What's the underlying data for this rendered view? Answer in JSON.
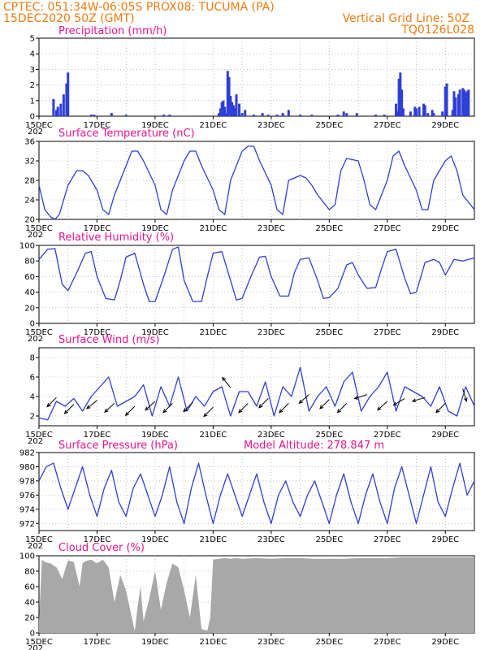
{
  "header": {
    "line1_left": "CPTEC:   051:34W-06:05S   PROX08: TUCUMA (PA)",
    "line2_left": "15DEC2020 50Z (GMT)",
    "line2_right": "Vertical Grid Line: 50Z",
    "line3_right": "TQ0126L028"
  },
  "colors": {
    "header": "#f07a12",
    "title": "#e8138f",
    "series": "#2e3fd6",
    "cloud": "#a8a8a8"
  },
  "x_axis": {
    "labels": [
      "15DEC",
      "17DEC",
      "19DEC",
      "21DEC",
      "23DEC",
      "25DEC",
      "27DEC",
      "29DEC"
    ],
    "year_stub": "202"
  },
  "chart_data": [
    {
      "type": "bar",
      "title": "Precipitation (mm/h)",
      "ylim": [
        0,
        5
      ],
      "yticks": [
        0,
        1,
        2,
        3,
        4,
        5
      ],
      "x": [
        0.5,
        0.6,
        0.65,
        0.75,
        0.85,
        0.95,
        1.0,
        1.8,
        1.9,
        2.5,
        3.0,
        4.3,
        4.5,
        6.2,
        6.25,
        6.3,
        6.35,
        6.4,
        6.45,
        6.5,
        6.55,
        6.6,
        6.65,
        6.7,
        6.75,
        6.8,
        6.9,
        7.0,
        7.1,
        7.4,
        7.7,
        7.9,
        8.2,
        8.4,
        8.6,
        9.0,
        9.4,
        10.3,
        10.5,
        10.6,
        10.95,
        11.6,
        11.9,
        12.3,
        12.35,
        12.4,
        12.45,
        12.5,
        12.55,
        12.8,
        12.95,
        13.0,
        13.1,
        13.25,
        13.3,
        13.4,
        13.55,
        13.6,
        13.9,
        14.0,
        14.05,
        14.25,
        14.3,
        14.35,
        14.45,
        14.5,
        14.6,
        14.65,
        14.7,
        14.75,
        14.8
      ],
      "values": [
        1.1,
        0.4,
        0.6,
        0.8,
        1.4,
        2.1,
        2.8,
        0.1,
        0.1,
        0.2,
        0.1,
        0.1,
        0.1,
        0.2,
        0.5,
        0.9,
        1.0,
        0.6,
        0.2,
        2.9,
        2.5,
        1.3,
        0.9,
        0.7,
        0.5,
        1.4,
        0.8,
        0.2,
        0.4,
        0.1,
        0.2,
        0.1,
        0.1,
        0.2,
        0.4,
        0.1,
        0.1,
        0.1,
        0.3,
        0.2,
        0.2,
        0.1,
        0.1,
        0.8,
        0.3,
        2.4,
        2.8,
        1.7,
        0.5,
        0.3,
        0.6,
        0.5,
        0.6,
        0.8,
        0.7,
        0.2,
        0.4,
        0.2,
        0.3,
        1.9,
        2.1,
        0.4,
        1.6,
        1.2,
        1.4,
        1.7,
        1.8,
        1.7,
        1.5,
        1.6,
        1.7
      ]
    },
    {
      "type": "line",
      "title": "Surface Temperature (nC)",
      "ylim": [
        20,
        36
      ],
      "yticks": [
        20,
        24,
        28,
        32,
        36
      ],
      "x": [
        0,
        0.2,
        0.4,
        0.55,
        0.7,
        1.0,
        1.3,
        1.5,
        1.7,
        2.0,
        2.2,
        2.4,
        2.6,
        3.0,
        3.2,
        3.4,
        3.6,
        4.0,
        4.2,
        4.4,
        4.6,
        5.0,
        5.2,
        5.4,
        5.6,
        6.0,
        6.2,
        6.4,
        6.6,
        7.0,
        7.2,
        7.4,
        7.6,
        8.0,
        8.2,
        8.4,
        8.6,
        9.0,
        9.2,
        9.4,
        9.6,
        10.0,
        10.2,
        10.4,
        10.6,
        11.0,
        11.2,
        11.4,
        11.6,
        12.0,
        12.2,
        12.4,
        12.6,
        13.0,
        13.2,
        13.4,
        13.6,
        14.0,
        14.2,
        14.4,
        14.6,
        15.0
      ],
      "values": [
        27,
        22,
        20.5,
        20,
        21,
        27,
        30,
        30,
        29,
        26,
        22,
        21,
        25,
        31,
        34,
        34,
        32,
        27,
        22,
        21,
        26,
        32,
        34,
        34,
        31,
        26,
        22,
        21,
        28,
        34,
        35,
        35,
        32,
        27,
        22,
        21,
        28,
        29,
        28.5,
        27,
        25,
        22,
        23,
        30,
        32.5,
        32,
        28,
        23,
        22,
        28,
        33,
        34,
        31,
        26,
        22,
        22,
        28,
        32,
        33,
        30,
        25,
        22
      ]
    },
    {
      "type": "line",
      "title": "Relative Humidity (%)",
      "ylim": [
        0,
        100
      ],
      "yticks": [
        0,
        20,
        40,
        60,
        80,
        100
      ],
      "x": [
        0,
        0.3,
        0.55,
        0.8,
        1.0,
        1.3,
        1.6,
        1.8,
        2.0,
        2.3,
        2.6,
        2.8,
        3.0,
        3.3,
        3.6,
        3.8,
        4.0,
        4.3,
        4.6,
        4.8,
        5.0,
        5.3,
        5.6,
        5.8,
        6.0,
        6.3,
        6.6,
        6.8,
        7.0,
        7.3,
        7.6,
        7.8,
        8.0,
        8.3,
        8.6,
        8.8,
        9.0,
        9.3,
        9.6,
        9.8,
        10.0,
        10.3,
        10.6,
        10.8,
        11.0,
        11.3,
        11.6,
        11.8,
        12.0,
        12.3,
        12.6,
        12.8,
        13.0,
        13.3,
        13.6,
        13.8,
        14.0,
        14.3,
        14.6,
        15.0
      ],
      "values": [
        82,
        95,
        96,
        50,
        42,
        65,
        90,
        92,
        60,
        32,
        30,
        55,
        85,
        90,
        50,
        28,
        28,
        60,
        95,
        98,
        55,
        28,
        28,
        60,
        90,
        92,
        55,
        30,
        32,
        60,
        85,
        86,
        60,
        35,
        35,
        65,
        82,
        84,
        55,
        32,
        33,
        45,
        75,
        78,
        62,
        45,
        46,
        70,
        92,
        95,
        58,
        38,
        40,
        78,
        82,
        78,
        62,
        82,
        80,
        84
      ]
    },
    {
      "type": "line",
      "title": "Surface Wind (m/s)",
      "ylim": [
        1,
        9
      ],
      "yticks": [
        2,
        4,
        6,
        8
      ],
      "x": [
        0,
        0.3,
        0.6,
        0.9,
        1.2,
        1.5,
        1.8,
        2.1,
        2.4,
        2.7,
        3.0,
        3.3,
        3.6,
        3.9,
        4.2,
        4.5,
        4.8,
        5.1,
        5.4,
        5.7,
        6.0,
        6.3,
        6.6,
        6.9,
        7.2,
        7.5,
        7.8,
        8.1,
        8.4,
        8.7,
        9.0,
        9.3,
        9.6,
        9.9,
        10.2,
        10.5,
        10.8,
        11.1,
        11.4,
        11.7,
        12.0,
        12.3,
        12.6,
        12.9,
        13.2,
        13.5,
        13.8,
        14.1,
        14.4,
        14.7,
        15.0
      ],
      "values": [
        1.8,
        1.6,
        3.5,
        3.0,
        3.8,
        2.5,
        4.0,
        5.0,
        6.0,
        3.0,
        3.5,
        4.0,
        5.2,
        2.0,
        5.0,
        3.0,
        6.0,
        2.5,
        4.0,
        3.0,
        4.5,
        5.0,
        2.0,
        4.5,
        4.5,
        3.0,
        5.5,
        2.0,
        5.0,
        4.0,
        7.0,
        2.5,
        4.0,
        5.0,
        3.0,
        5.5,
        6.5,
        2.5,
        4.0,
        5.0,
        6.5,
        2.5,
        5.0,
        4.5,
        4.0,
        3.0,
        5.0,
        2.5,
        2.0,
        5.0,
        3.0
      ]
    },
    {
      "type": "line",
      "title": "Surface Pressure (hPa)",
      "annotation": "Model Altitude: 278.847  m",
      "ylim": [
        971,
        982
      ],
      "yticks": [
        972,
        974,
        976,
        978,
        980,
        982
      ],
      "x": [
        0,
        0.25,
        0.5,
        0.75,
        1.0,
        1.25,
        1.5,
        1.75,
        2.0,
        2.25,
        2.5,
        2.75,
        3.0,
        3.25,
        3.5,
        3.75,
        4.0,
        4.25,
        4.5,
        4.75,
        5.0,
        5.25,
        5.5,
        5.75,
        6.0,
        6.25,
        6.5,
        6.75,
        7.0,
        7.25,
        7.5,
        7.75,
        8.0,
        8.25,
        8.5,
        8.75,
        9.0,
        9.25,
        9.5,
        9.75,
        10.0,
        10.25,
        10.5,
        10.75,
        11.0,
        11.25,
        11.5,
        11.75,
        12.0,
        12.25,
        12.5,
        12.75,
        13.0,
        13.25,
        13.5,
        13.75,
        14.0,
        14.25,
        14.5,
        14.75,
        15.0
      ],
      "values": [
        978,
        980,
        980.5,
        977,
        974,
        977,
        980,
        976,
        973,
        977,
        979.5,
        975,
        973,
        977,
        979,
        976,
        973,
        976,
        980,
        975,
        972,
        977,
        980.5,
        976,
        972,
        976,
        979,
        976,
        973,
        976,
        979,
        975,
        972,
        976,
        978,
        975,
        973,
        976,
        978,
        975,
        972,
        976,
        979,
        975,
        972,
        976,
        979,
        975,
        972,
        977,
        980,
        976,
        972,
        976,
        980,
        975,
        973,
        977,
        980.5,
        976,
        978
      ]
    },
    {
      "type": "area",
      "title": "Cloud Cover (%)",
      "ylim": [
        0,
        100
      ],
      "yticks": [
        0,
        20,
        40,
        60,
        80,
        100
      ],
      "x": [
        0,
        0.1,
        0.2,
        0.4,
        0.6,
        0.8,
        1.0,
        1.2,
        1.4,
        1.5,
        1.6,
        1.8,
        2.0,
        2.2,
        2.4,
        2.6,
        2.8,
        3.0,
        3.2,
        3.3,
        3.4,
        3.5,
        3.6,
        3.8,
        4.0,
        4.2,
        4.4,
        4.6,
        4.8,
        5.0,
        5.2,
        5.4,
        5.6,
        5.8,
        5.9,
        6.0,
        6.2,
        6.4,
        6.6,
        6.8,
        7.0,
        7.5,
        8.0,
        8.5,
        9.0,
        9.5,
        10.0,
        10.5,
        11.0,
        11.5,
        12.0,
        12.5,
        13.0,
        13.5,
        14.0,
        14.5,
        15.0
      ],
      "values": [
        15,
        95,
        92,
        90,
        85,
        70,
        94,
        92,
        60,
        90,
        93,
        95,
        90,
        95,
        85,
        40,
        75,
        55,
        20,
        2,
        35,
        60,
        15,
        45,
        80,
        30,
        65,
        90,
        85,
        55,
        20,
        75,
        5,
        3,
        20,
        95,
        96,
        97,
        96,
        97,
        96,
        97,
        96,
        97,
        97,
        96,
        96,
        96,
        97,
        97,
        97,
        98,
        98,
        98,
        98,
        98,
        98
      ]
    }
  ],
  "wind_arrows": {
    "x": [
      0.6,
      1.2,
      2.0,
      2.6,
      3.3,
      4.0,
      4.6,
      5.3,
      6.0,
      6.6,
      7.2,
      7.9,
      8.6,
      9.3,
      10.0,
      10.6,
      11.3,
      12.0,
      12.6,
      13.3,
      14.0,
      14.6
    ],
    "y": [
      3.9,
      3.2,
      3.6,
      3.3,
      3.0,
      3.5,
      3.3,
      3.4,
      2.9,
      4.9,
      3.3,
      3.8,
      3.3,
      4.2,
      3.7,
      3.3,
      4.2,
      3.5,
      3.8,
      3.9,
      3.3,
      4.8
    ],
    "dx": [
      1,
      1,
      1,
      1,
      1,
      1,
      1,
      1,
      1,
      0.8,
      1,
      1,
      1,
      0.9,
      1,
      1,
      0.9,
      1,
      1,
      1,
      1,
      -0.3
    ],
    "dy": [
      -1,
      -1,
      -0.8,
      -0.9,
      -1,
      -0.9,
      -1,
      -1,
      -1,
      1,
      -1,
      -1,
      -1,
      -0.8,
      -1,
      -1,
      -0.3,
      -0.9,
      -0.6,
      -0.3,
      -1,
      -1
    ]
  }
}
